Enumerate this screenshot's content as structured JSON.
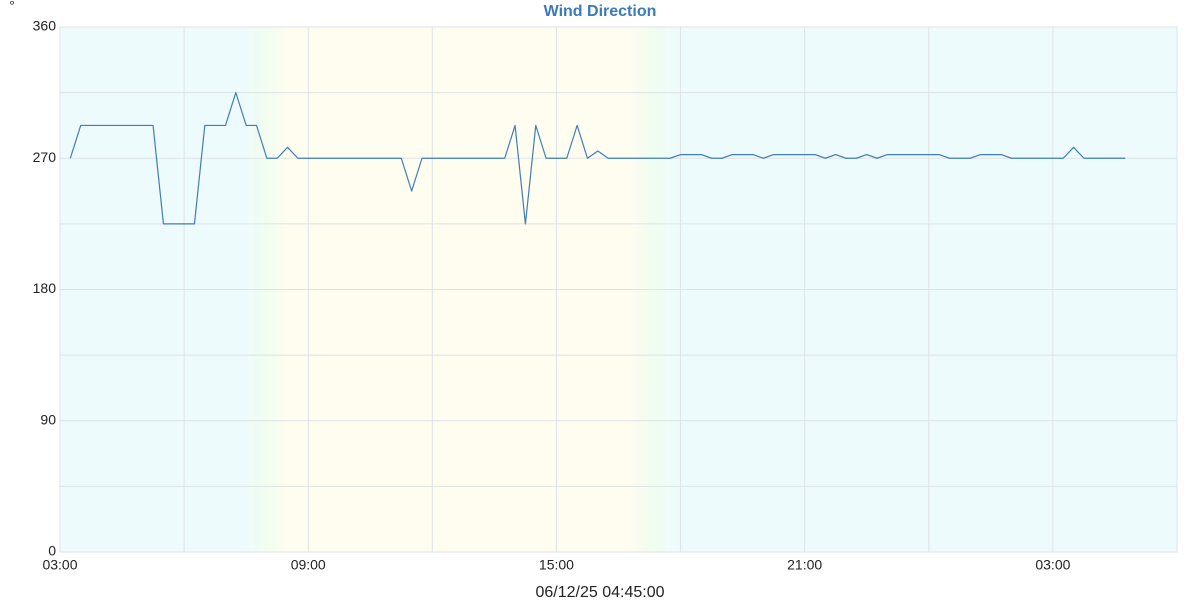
{
  "chart_data": {
    "type": "line",
    "title": "Wind Direction",
    "y_label": "°",
    "footer": "06/12/25 04:45:00",
    "x": [
      0.25,
      0.5,
      0.75,
      1,
      1.25,
      1.5,
      1.75,
      2,
      2.25,
      2.5,
      2.75,
      3,
      3.25,
      3.5,
      3.75,
      4,
      4.25,
      4.5,
      4.75,
      5,
      5.25,
      5.5,
      5.75,
      6,
      6.25,
      6.5,
      6.75,
      7,
      7.25,
      7.5,
      7.75,
      8,
      8.25,
      8.5,
      8.75,
      9,
      9.25,
      9.5,
      9.75,
      10,
      10.25,
      10.5,
      10.75,
      11,
      11.25,
      11.5,
      11.75,
      12,
      12.25,
      12.5,
      12.75,
      13,
      13.25,
      13.5,
      13.75,
      14,
      14.25,
      14.5,
      14.75,
      15,
      15.25,
      15.5,
      15.75,
      16,
      16.25,
      16.5,
      16.75,
      17,
      17.25,
      17.5,
      17.75,
      18,
      18.25,
      18.5,
      18.75,
      19,
      19.25,
      19.5,
      19.75,
      20,
      20.25,
      20.5,
      20.75,
      21,
      21.25,
      21.5,
      21.75,
      22,
      22.25,
      22.5,
      22.75,
      23,
      23.25,
      23.5,
      23.75,
      24,
      24.25,
      24.5,
      24.75,
      25,
      25.25,
      25.5,
      25.75
    ],
    "series": [
      {
        "name": "Wind Direction",
        "color": "#3f7db8",
        "values": [
          270,
          292.5,
          292.5,
          292.5,
          292.5,
          292.5,
          292.5,
          292.5,
          292.5,
          225,
          225,
          225,
          225,
          292.5,
          292.5,
          292.5,
          315,
          292.5,
          292.5,
          270,
          270,
          277.5,
          270,
          270,
          270,
          270,
          270,
          270,
          270,
          270,
          270,
          270,
          270,
          247.5,
          270,
          270,
          270,
          270,
          270,
          270,
          270,
          270,
          270,
          292.5,
          225,
          292.5,
          270,
          270,
          270,
          292.5,
          270,
          275,
          270,
          270,
          270,
          270,
          270,
          270,
          270,
          272.5,
          272.5,
          272.5,
          270,
          270,
          272.5,
          272.5,
          272.5,
          270,
          272.5,
          272.5,
          272.5,
          272.5,
          272.5,
          270,
          272.5,
          270,
          270,
          272.5,
          270,
          272.5,
          272.5,
          272.5,
          272.5,
          272.5,
          272.5,
          270,
          270,
          270,
          272.5,
          272.5,
          272.5,
          270,
          270,
          270,
          270,
          270,
          270,
          277.5,
          270,
          270,
          270,
          270,
          270
        ]
      }
    ],
    "xlim": [
      0,
      27
    ],
    "xticks": [
      {
        "value": 0,
        "label": "03:00"
      },
      {
        "value": 6,
        "label": "09:00"
      },
      {
        "value": 12,
        "label": "15:00"
      },
      {
        "value": 18,
        "label": "21:00"
      },
      {
        "value": 24,
        "label": "03:00"
      }
    ],
    "ylim": [
      0,
      360
    ],
    "yticks": [
      0,
      90,
      180,
      270,
      360
    ],
    "grid": true
  }
}
